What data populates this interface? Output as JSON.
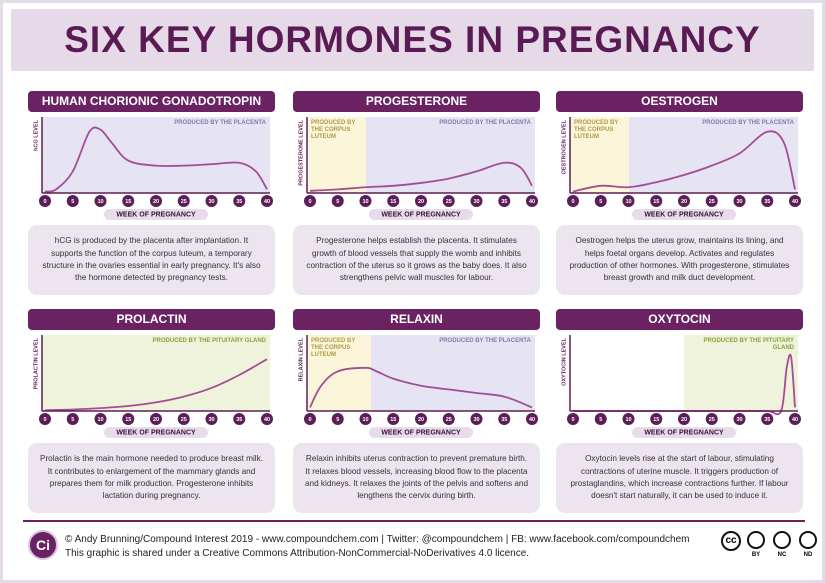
{
  "title": "SIX KEY HORMONES IN PREGNANCY",
  "chart_data": [
    {
      "type": "line",
      "title": "HUMAN CHORIONIC GONADOTROPIN",
      "ylabel": "hCG LEVEL",
      "xlabel": "WEEK OF PREGNANCY",
      "x": [
        0,
        2,
        5,
        8,
        10,
        12,
        15,
        20,
        25,
        30,
        35,
        38,
        40
      ],
      "values": [
        2,
        5,
        30,
        85,
        88,
        70,
        45,
        38,
        38,
        40,
        42,
        30,
        5
      ],
      "color": "#a34d95",
      "xlim": [
        0,
        40
      ],
      "ylim": [
        0,
        100
      ],
      "xticks": [
        0,
        5,
        10,
        15,
        20,
        25,
        30,
        35,
        40
      ],
      "regions": [
        {
          "label": "PRODUCED BY THE PLACENTA",
          "from": 0,
          "to": 40,
          "color": "#e6e4f2",
          "text_color": "#8479ad"
        }
      ],
      "description": "hCG is produced by the placenta after implantation. It supports the function of the corpus luteum, a temporary structure in the ovaries essential in early pregnancy. It's also the hormone detected by pregnancy tests."
    },
    {
      "type": "line",
      "title": "PROGESTERONE",
      "ylabel": "PROGESTERONE LEVEL",
      "xlabel": "WEEK OF PREGNANCY",
      "x": [
        0,
        5,
        10,
        15,
        20,
        25,
        30,
        35,
        38,
        40
      ],
      "values": [
        3,
        5,
        8,
        10,
        14,
        20,
        30,
        42,
        35,
        10
      ],
      "color": "#a34d95",
      "xlim": [
        0,
        40
      ],
      "ylim": [
        0,
        100
      ],
      "xticks": [
        0,
        5,
        10,
        15,
        20,
        25,
        30,
        35,
        40
      ],
      "regions": [
        {
          "label": "PRODUCED BY THE CORPUS LUTEUM",
          "from": 0,
          "to": 10,
          "color": "#fbf6da",
          "text_color": "#b09a45"
        },
        {
          "label": "PRODUCED BY THE PLACENTA",
          "from": 10,
          "to": 40,
          "color": "#e6e4f2",
          "text_color": "#8479ad"
        }
      ],
      "description": "Progesterone helps establish the placenta. It stimulates growth of blood vessels that supply the womb and inhibits contraction of the uterus so it grows as the baby does. It also strengthens pelvic wall muscles for labour."
    },
    {
      "type": "line",
      "title": "OESTROGEN",
      "ylabel": "OESTROGEN LEVEL",
      "xlabel": "WEEK OF PREGNANCY",
      "x": [
        0,
        5,
        10,
        15,
        20,
        25,
        30,
        35,
        38,
        40
      ],
      "values": [
        2,
        10,
        8,
        15,
        25,
        38,
        55,
        85,
        70,
        5
      ],
      "color": "#a34d95",
      "xlim": [
        0,
        40
      ],
      "ylim": [
        0,
        100
      ],
      "xticks": [
        0,
        5,
        10,
        15,
        20,
        25,
        30,
        35,
        40
      ],
      "regions": [
        {
          "label": "PRODUCED BY THE CORPUS LUTEUM",
          "from": 0,
          "to": 10,
          "color": "#fbf6da",
          "text_color": "#b09a45"
        },
        {
          "label": "PRODUCED BY THE PLACENTA",
          "from": 10,
          "to": 40,
          "color": "#e6e4f2",
          "text_color": "#8479ad"
        }
      ],
      "description": "Oestrogen helps the uterus grow, maintains its lining, and helps foetal organs develop. Activates and regulates production of other hormones. With progesterone, stimulates breast growth and milk duct development."
    },
    {
      "type": "line",
      "title": "PROLACTIN",
      "ylabel": "PROLACTIN LEVEL",
      "xlabel": "WEEK OF PREGNANCY",
      "x": [
        0,
        5,
        10,
        15,
        20,
        25,
        30,
        35,
        40
      ],
      "values": [
        1,
        2,
        4,
        7,
        12,
        20,
        32,
        50,
        72
      ],
      "color": "#a34d95",
      "xlim": [
        0,
        40
      ],
      "ylim": [
        0,
        100
      ],
      "xticks": [
        0,
        5,
        10,
        15,
        20,
        25,
        30,
        35,
        40
      ],
      "regions": [
        {
          "label": "PRODUCED BY THE PITUITARY GLAND",
          "from": 0,
          "to": 40,
          "color": "#eff3dc",
          "text_color": "#86a23a"
        }
      ],
      "description": "Prolactin is the main hormone needed to produce breast milk. It contributes to enlargement of the mammary glands and prepares them for milk production. Progesterone inhibits lactation during pregnancy."
    },
    {
      "type": "line",
      "title": "RELAXIN",
      "ylabel": "RELAXIN LEVEL",
      "xlabel": "WEEK OF PREGNANCY",
      "x": [
        0,
        2,
        5,
        10,
        12,
        15,
        20,
        25,
        30,
        35,
        40
      ],
      "values": [
        5,
        35,
        55,
        60,
        55,
        45,
        35,
        30,
        25,
        20,
        5
      ],
      "color": "#a34d95",
      "xlim": [
        0,
        40
      ],
      "ylim": [
        0,
        100
      ],
      "xticks": [
        0,
        5,
        10,
        15,
        20,
        25,
        30,
        35,
        40
      ],
      "regions": [
        {
          "label": "PRODUCED BY THE CORPUS LUTEUM",
          "from": 0,
          "to": 11,
          "color": "#fbf6da",
          "text_color": "#b09a45"
        },
        {
          "label": "PRODUCED BY THE PLACENTA",
          "from": 11,
          "to": 40,
          "color": "#e6e4f2",
          "text_color": "#8479ad"
        }
      ],
      "description": "Relaxin inhibits uterus contraction to prevent premature birth. It relaxes blood vessels, increasing blood flow to the placenta and kidneys. It relaxes the joints of the pelvis and softens and lengthens the cervix during birth."
    },
    {
      "type": "line",
      "title": "OXYTOCIN",
      "ylabel": "OXYTOCIN LEVEL",
      "xlabel": "WEEK OF PREGNANCY",
      "x": [
        0,
        5,
        10,
        15,
        20,
        25,
        30,
        35,
        37.5,
        38.5,
        39.3,
        40
      ],
      "values": [
        0,
        0,
        0,
        0,
        0,
        0,
        0,
        0,
        0,
        60,
        75,
        5
      ],
      "color": "#a34d95",
      "xlim": [
        0,
        40
      ],
      "ylim": [
        0,
        100
      ],
      "xticks": [
        0,
        5,
        10,
        15,
        20,
        25,
        30,
        35,
        40
      ],
      "regions": [
        {
          "label": "PRODUCED BY THE PITUITARY GLAND",
          "from": 20,
          "to": 40,
          "color": "#eff3dc",
          "text_color": "#86a23a"
        }
      ],
      "description": "Oxytocin levels rise at the start of labour, stimulating contractions of uterine muscle. It triggers production of prostaglandins, which increase contractions further. If labour doesn't start naturally, it can be used to induce it."
    }
  ],
  "footer": {
    "logo": "Ci",
    "credit": "© Andy Brunning/Compound Interest 2019 - www.compoundchem.com | Twitter: @compoundchem | FB: www.facebook.com/compoundchem",
    "licence": "This graphic is shared under a Creative Commons Attribution-NonCommercial-NoDerivatives 4.0 licence.",
    "cc": "cc",
    "licence_icons": [
      "BY",
      "NC",
      "ND"
    ]
  }
}
